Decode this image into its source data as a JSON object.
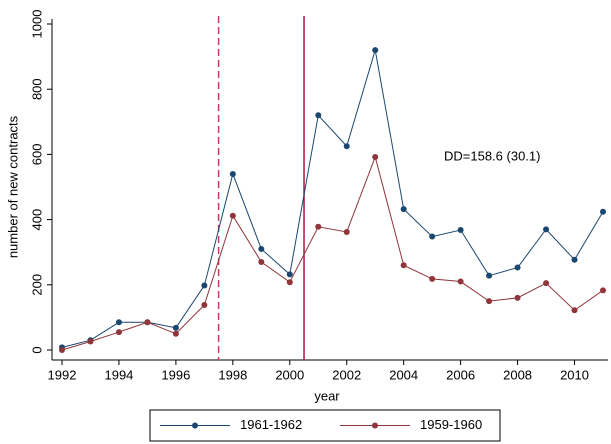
{
  "chart_data": {
    "type": "line",
    "x_label": "year",
    "y_label": "number of new contracts",
    "annotation": "DD=158.6 (30.1)",
    "x": [
      1992,
      1993,
      1994,
      1995,
      1996,
      1997,
      1998,
      1999,
      2000,
      2001,
      2002,
      2003,
      2004,
      2005,
      2006,
      2007,
      2008,
      2009,
      2010,
      2011
    ],
    "series": [
      {
        "name": "1961-1962",
        "color": "#1a476f",
        "values": [
          8,
          30,
          85,
          85,
          68,
          198,
          540,
          310,
          232,
          720,
          625,
          920,
          432,
          348,
          368,
          228,
          253,
          370,
          277,
          424
        ]
      },
      {
        "name": "1959-1960",
        "color": "#90353b",
        "values": [
          0,
          26,
          55,
          85,
          50,
          138,
          412,
          270,
          208,
          378,
          362,
          592,
          260,
          218,
          210,
          150,
          160,
          205,
          122,
          183
        ]
      }
    ],
    "reference_lines": [
      {
        "x": 1997.5,
        "style": "dashed",
        "color": "#c8386a"
      },
      {
        "x": 2000.5,
        "style": "solid",
        "color": "#b0123c"
      }
    ],
    "xlim": [
      1992,
      2011
    ],
    "ylim": [
      0,
      1000
    ],
    "xticks": [
      1992,
      1994,
      1996,
      1998,
      2000,
      2002,
      2004,
      2006,
      2008,
      2010
    ],
    "yticks": [
      0,
      200,
      400,
      600,
      800,
      1000
    ],
    "legend": "bottom"
  }
}
